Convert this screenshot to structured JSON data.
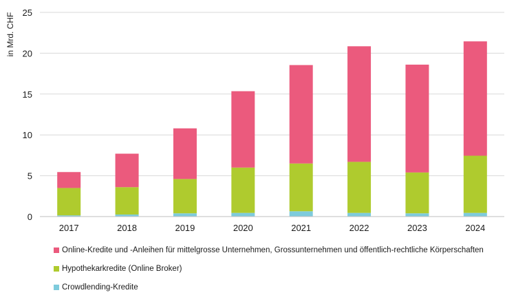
{
  "chart_data": {
    "type": "bar",
    "stacked": true,
    "ylabel": "in Mrd. CHF",
    "ylim": [
      0,
      25
    ],
    "yticks": [
      0,
      5,
      10,
      15,
      20,
      25
    ],
    "categories": [
      "2017",
      "2018",
      "2019",
      "2020",
      "2021",
      "2022",
      "2023",
      "2024"
    ],
    "series": [
      {
        "name": "Crowdlending-Kredite",
        "color": "#7ecbdc",
        "values": [
          0.15,
          0.25,
          0.4,
          0.45,
          0.65,
          0.45,
          0.4,
          0.45
        ]
      },
      {
        "name": "Hypothekarkredite (Online Broker)",
        "color": "#afcb2e",
        "values": [
          3.35,
          3.35,
          4.2,
          5.55,
          5.85,
          6.25,
          5.0,
          7.0
        ]
      },
      {
        "name": "Online-Kredite und -Anleihen für mittelgrosse Unternehmen, Grossunternehmen und öffentlich-rechtliche Körperschaften",
        "color": "#eb5a7d",
        "values": [
          1.95,
          4.1,
          6.2,
          9.35,
          12.05,
          14.15,
          13.2,
          14.0
        ]
      }
    ],
    "legend_order": [
      2,
      1,
      0
    ],
    "grid": "horizontal",
    "legend_position": "bottom"
  }
}
